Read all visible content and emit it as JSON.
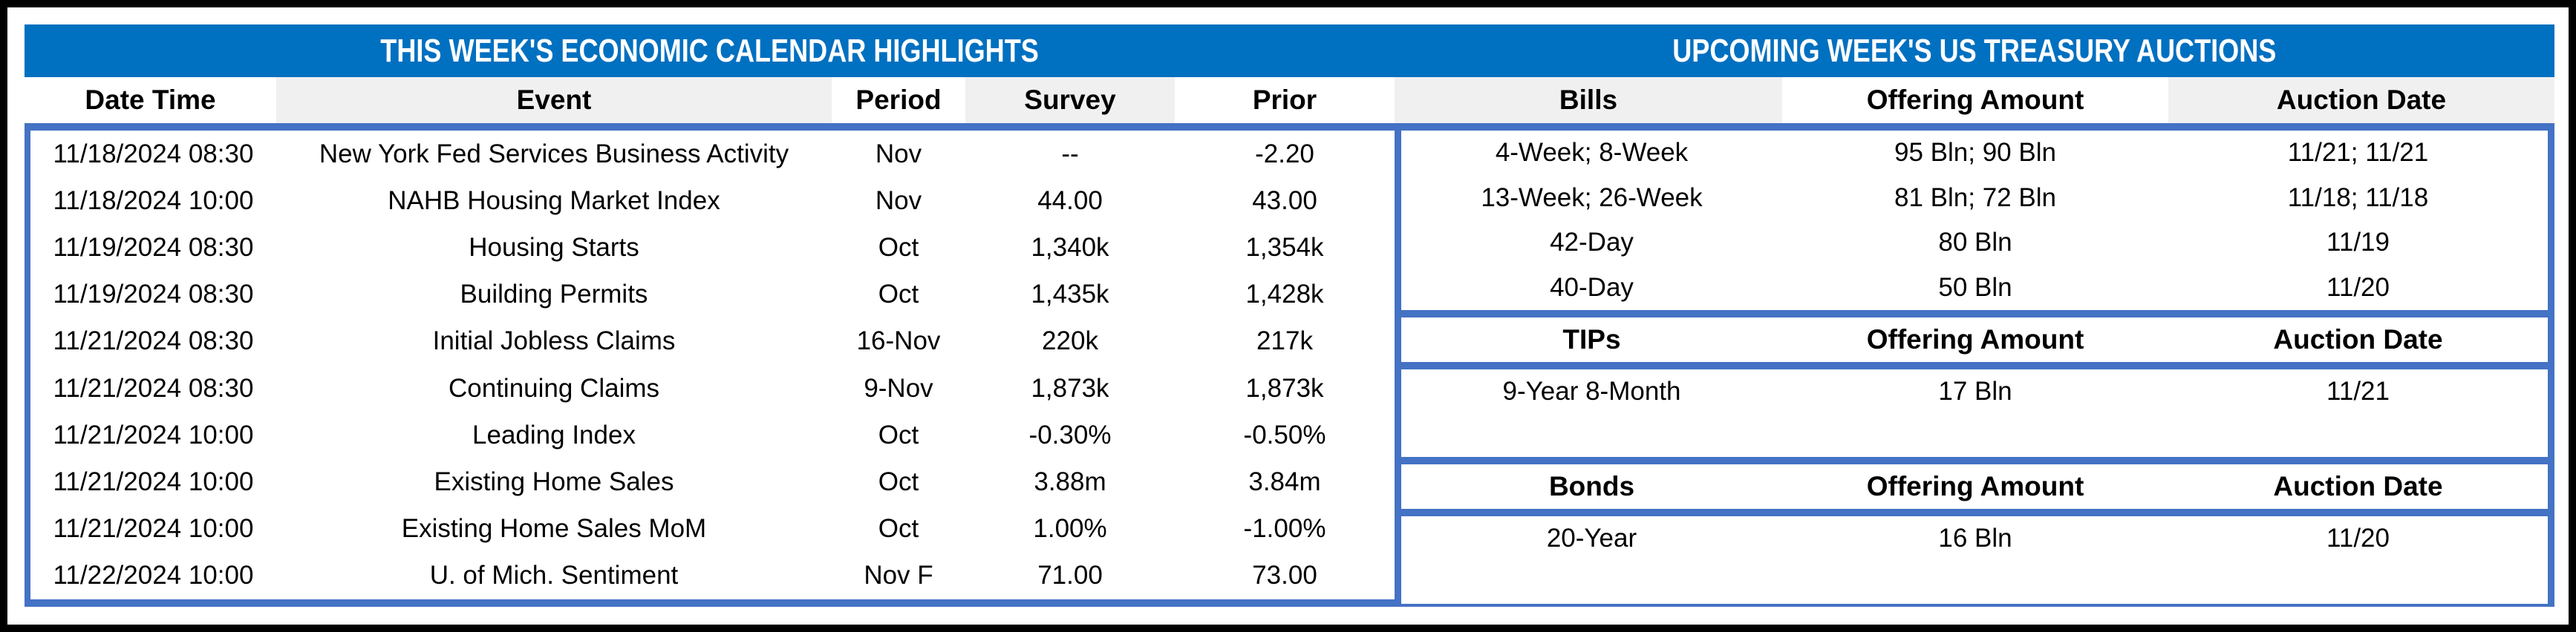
{
  "colors": {
    "title_bar_blue": "#0070C0",
    "table_border_blue": "#4472C4",
    "column_shade_gray": "#F0F0F0",
    "title_text_white": "#FFFFFF",
    "body_text_black": "#000000"
  },
  "calendar": {
    "title": "THIS WEEK'S ECONOMIC CALENDAR HIGHLIGHTS",
    "columns": [
      "Date Time",
      "Event",
      "Period",
      "Survey",
      "Prior"
    ],
    "rows": [
      {
        "date": "11/18/2024 08:30",
        "event": "New York Fed Services Business Activity",
        "period": "Nov",
        "survey": "--",
        "prior": "-2.20"
      },
      {
        "date": "11/18/2024 10:00",
        "event": "NAHB Housing Market Index",
        "period": "Nov",
        "survey": "44.00",
        "prior": "43.00"
      },
      {
        "date": "11/19/2024 08:30",
        "event": "Housing Starts",
        "period": "Oct",
        "survey": "1,340k",
        "prior": "1,354k"
      },
      {
        "date": "11/19/2024 08:30",
        "event": "Building Permits",
        "period": "Oct",
        "survey": "1,435k",
        "prior": "1,428k"
      },
      {
        "date": "11/21/2024 08:30",
        "event": "Initial Jobless Claims",
        "period": "16-Nov",
        "survey": "220k",
        "prior": "217k"
      },
      {
        "date": "11/21/2024 08:30",
        "event": "Continuing Claims",
        "period": "9-Nov",
        "survey": "1,873k",
        "prior": "1,873k"
      },
      {
        "date": "11/21/2024 10:00",
        "event": "Leading Index",
        "period": "Oct",
        "survey": "-0.30%",
        "prior": "-0.50%"
      },
      {
        "date": "11/21/2024 10:00",
        "event": "Existing Home Sales",
        "period": "Oct",
        "survey": "3.88m",
        "prior": "3.84m"
      },
      {
        "date": "11/21/2024 10:00",
        "event": "Existing Home Sales MoM",
        "period": "Oct",
        "survey": "1.00%",
        "prior": "-1.00%"
      },
      {
        "date": "11/22/2024 10:00",
        "event": "U. of Mich. Sentiment",
        "period": "Nov F",
        "survey": "71.00",
        "prior": "73.00"
      }
    ]
  },
  "auctions": {
    "title": "UPCOMING WEEK'S US TREASURY AUCTIONS",
    "bills": {
      "columns": [
        "Bills",
        "Offering Amount",
        "Auction Date"
      ],
      "rows": [
        {
          "security": "4-Week; 8-Week",
          "amount": "95 Bln; 90 Bln",
          "date": "11/21; 11/21"
        },
        {
          "security": "13-Week; 26-Week",
          "amount": "81 Bln; 72 Bln",
          "date": "11/18; 11/18"
        },
        {
          "security": "42-Day",
          "amount": "80 Bln",
          "date": "11/19"
        },
        {
          "security": "40-Day",
          "amount": "50 Bln",
          "date": "11/20"
        }
      ]
    },
    "tips": {
      "columns": [
        "TIPs",
        "Offering Amount",
        "Auction Date"
      ],
      "rows": [
        {
          "security": "9-Year 8-Month",
          "amount": "17 Bln",
          "date": "11/21"
        }
      ]
    },
    "bonds": {
      "columns": [
        "Bonds",
        "Offering Amount",
        "Auction Date"
      ],
      "rows": [
        {
          "security": "20-Year",
          "amount": "16 Bln",
          "date": "11/20"
        }
      ]
    }
  }
}
